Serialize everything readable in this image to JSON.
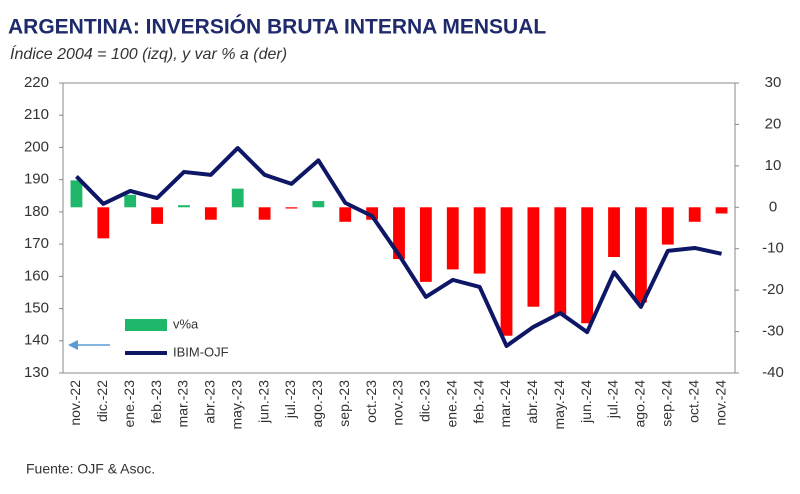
{
  "chart_data": {
    "type": "bar-line",
    "title": "ARGENTINA: INVERSIÓN BRUTA INTERNA MENSUAL",
    "subtitle": "Índice 2004 = 100 (izq), y var % a (der)",
    "source": "Fuente: OJF & Asoc.",
    "categories": [
      "nov.-22",
      "dic.-22",
      "ene.-23",
      "feb.-23",
      "mar.-23",
      "abr.-23",
      "may.-23",
      "jun.-23",
      "jul.-23",
      "ago.-23",
      "sep.-23",
      "oct.-23",
      "nov.-23",
      "dic.-23",
      "ene.-24",
      "feb.-24",
      "mar.-24",
      "abr.-24",
      "may.-24",
      "jun.-24",
      "jul.-24",
      "ago.-24",
      "sep.-24",
      "oct.-24",
      "nov.-24"
    ],
    "series": [
      {
        "name": "v%a",
        "kind": "bar",
        "axis": "y2",
        "color": "#1fb86a",
        "negative_color": "#ff0000",
        "values": [
          6.5,
          -7.5,
          3,
          -4,
          0.5,
          -3,
          4.5,
          -3,
          -0.3,
          1.5,
          -3.5,
          -3,
          -12.5,
          -18,
          -15,
          -16,
          -31,
          -24,
          -26,
          -28,
          -12,
          -23,
          -9,
          -3.5,
          -1.5
        ]
      },
      {
        "name": "IBIM-OJF",
        "kind": "line",
        "axis": "y",
        "color": "#0d1766",
        "values": [
          191,
          182.5,
          186.5,
          184.3,
          192.4,
          191.5,
          199.8,
          191.5,
          188.7,
          196,
          182.8,
          178.7,
          166.6,
          153.6,
          158.9,
          156.7,
          138.4,
          144.3,
          148.6,
          142.7,
          161.3,
          150.5,
          167.9,
          168.8,
          167
        ]
      }
    ],
    "ylim": [
      130,
      220
    ],
    "yticks": [
      130,
      140,
      150,
      160,
      170,
      180,
      190,
      200,
      210,
      220
    ],
    "y2lim": [
      -40,
      30
    ],
    "y2ticks": [
      -40,
      -30,
      -20,
      -10,
      0,
      10,
      20,
      30
    ],
    "legend_position": "lower left"
  }
}
